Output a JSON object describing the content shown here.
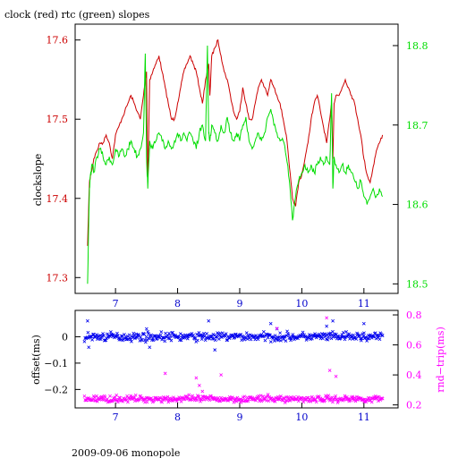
{
  "header": {
    "title": "clock (red) rtc (green) slopes"
  },
  "footer": {
    "caption": "2009-09-06 monopole"
  },
  "colors": {
    "clock": "#cc0000",
    "rtc": "#00dd00",
    "offset": "#0000ee",
    "rndtrip": "#ff00ff",
    "axis": "#000000"
  },
  "chart_data": [
    {
      "type": "line",
      "ylabel": "clockslope",
      "x_ticks": [
        7,
        8,
        9,
        10,
        11
      ],
      "xlim": [
        6.35,
        11.55
      ],
      "grid": false,
      "left_axis": {
        "lim": [
          17.28,
          17.62
        ],
        "ticks": [
          17.3,
          17.4,
          17.5,
          17.6
        ],
        "color": "#cc0000"
      },
      "right_axis": {
        "lim": [
          18.488,
          18.827
        ],
        "ticks": [
          18.5,
          18.6,
          18.7,
          18.8
        ],
        "color": "#00dd00"
      },
      "series": [
        {
          "axis": "left",
          "x": [
            6.55,
            6.58,
            6.6,
            6.63,
            6.65,
            6.7,
            6.75,
            6.8,
            6.85,
            6.9,
            6.95,
            7.0,
            7.05,
            7.1,
            7.15,
            7.2,
            7.25,
            7.3,
            7.35,
            7.4,
            7.45,
            7.48,
            7.5,
            7.52,
            7.55,
            7.6,
            7.65,
            7.7,
            7.75,
            7.8,
            7.85,
            7.9,
            7.95,
            8.0,
            8.05,
            8.1,
            8.15,
            8.2,
            8.25,
            8.3,
            8.35,
            8.4,
            8.45,
            8.48,
            8.5,
            8.52,
            8.55,
            8.6,
            8.65,
            8.7,
            8.75,
            8.8,
            8.85,
            8.9,
            8.95,
            9.0,
            9.05,
            9.1,
            9.15,
            9.2,
            9.25,
            9.3,
            9.35,
            9.4,
            9.45,
            9.5,
            9.55,
            9.6,
            9.65,
            9.7,
            9.75,
            9.8,
            9.85,
            9.9,
            9.95,
            10.0,
            10.05,
            10.1,
            10.15,
            10.2,
            10.25,
            10.3,
            10.35,
            10.4,
            10.45,
            10.48,
            10.5,
            10.52,
            10.55,
            10.6,
            10.65,
            10.7,
            10.75,
            10.8,
            10.85,
            10.9,
            10.95,
            11.0,
            11.05,
            11.1,
            11.15,
            11.2,
            11.25,
            11.3
          ],
          "y": [
            17.34,
            17.42,
            17.43,
            17.44,
            17.45,
            17.46,
            17.47,
            17.47,
            17.48,
            17.47,
            17.45,
            17.48,
            17.49,
            17.5,
            17.51,
            17.52,
            17.53,
            17.52,
            17.51,
            17.5,
            17.53,
            17.55,
            17.56,
            17.42,
            17.55,
            17.56,
            17.57,
            17.58,
            17.56,
            17.54,
            17.52,
            17.5,
            17.5,
            17.52,
            17.54,
            17.56,
            17.57,
            17.58,
            17.57,
            17.56,
            17.54,
            17.52,
            17.55,
            17.56,
            17.57,
            17.53,
            17.58,
            17.59,
            17.6,
            17.58,
            17.56,
            17.55,
            17.53,
            17.51,
            17.5,
            17.51,
            17.54,
            17.52,
            17.5,
            17.5,
            17.52,
            17.54,
            17.55,
            17.54,
            17.53,
            17.55,
            17.54,
            17.53,
            17.52,
            17.5,
            17.48,
            17.44,
            17.4,
            17.39,
            17.42,
            17.43,
            17.45,
            17.47,
            17.5,
            17.52,
            17.53,
            17.51,
            17.49,
            17.47,
            17.5,
            17.52,
            17.45,
            17.52,
            17.53,
            17.53,
            17.54,
            17.55,
            17.54,
            17.53,
            17.52,
            17.5,
            17.48,
            17.45,
            17.43,
            17.42,
            17.44,
            17.46,
            17.47,
            17.48
          ]
        },
        {
          "axis": "right",
          "x": [
            6.55,
            6.58,
            6.6,
            6.63,
            6.65,
            6.7,
            6.75,
            6.8,
            6.85,
            6.9,
            6.95,
            7.0,
            7.05,
            7.1,
            7.15,
            7.2,
            7.25,
            7.3,
            7.35,
            7.4,
            7.45,
            7.48,
            7.5,
            7.52,
            7.55,
            7.6,
            7.65,
            7.7,
            7.75,
            7.8,
            7.85,
            7.9,
            7.95,
            8.0,
            8.05,
            8.1,
            8.15,
            8.2,
            8.25,
            8.3,
            8.35,
            8.4,
            8.45,
            8.48,
            8.5,
            8.52,
            8.55,
            8.6,
            8.65,
            8.7,
            8.75,
            8.8,
            8.85,
            8.9,
            8.95,
            9.0,
            9.05,
            9.1,
            9.15,
            9.2,
            9.25,
            9.3,
            9.35,
            9.4,
            9.45,
            9.5,
            9.55,
            9.6,
            9.65,
            9.7,
            9.75,
            9.8,
            9.85,
            9.9,
            9.95,
            10.0,
            10.05,
            10.1,
            10.15,
            10.2,
            10.25,
            10.3,
            10.35,
            10.4,
            10.45,
            10.48,
            10.5,
            10.52,
            10.55,
            10.6,
            10.65,
            10.7,
            10.75,
            10.8,
            10.85,
            10.9,
            10.95,
            11.0,
            11.05,
            11.1,
            11.15,
            11.2,
            11.25,
            11.3
          ],
          "y": [
            18.5,
            18.62,
            18.64,
            18.65,
            18.64,
            18.66,
            18.67,
            18.66,
            18.65,
            18.66,
            18.65,
            18.67,
            18.66,
            18.67,
            18.66,
            18.67,
            18.68,
            18.67,
            18.66,
            18.67,
            18.69,
            18.79,
            18.66,
            18.62,
            18.68,
            18.67,
            18.68,
            18.69,
            18.68,
            18.67,
            18.68,
            18.67,
            18.68,
            18.69,
            18.68,
            18.69,
            18.68,
            18.69,
            18.68,
            18.67,
            18.69,
            18.7,
            18.68,
            18.8,
            18.69,
            18.68,
            18.7,
            18.69,
            18.68,
            18.7,
            18.69,
            18.71,
            18.69,
            18.68,
            18.69,
            18.68,
            18.7,
            18.71,
            18.68,
            18.67,
            18.68,
            18.69,
            18.68,
            18.69,
            18.71,
            18.72,
            18.7,
            18.69,
            18.68,
            18.68,
            18.66,
            18.63,
            18.58,
            18.61,
            18.63,
            18.64,
            18.65,
            18.64,
            18.65,
            18.64,
            18.65,
            18.66,
            18.65,
            18.66,
            18.65,
            18.74,
            18.62,
            18.66,
            18.65,
            18.64,
            18.65,
            18.64,
            18.65,
            18.64,
            18.63,
            18.62,
            18.63,
            18.61,
            18.6,
            18.61,
            18.62,
            18.61,
            18.62,
            18.61
          ]
        }
      ]
    },
    {
      "type": "scatter",
      "ylabel_left": "offset(ms)",
      "ylabel_right": "rnd−trip(ms)",
      "x_ticks": [
        7,
        8,
        9,
        10,
        11
      ],
      "xlim": [
        6.35,
        11.55
      ],
      "grid": false,
      "left_axis": {
        "lim": [
          -0.27,
          0.1
        ],
        "ticks": [
          0,
          -0.1,
          -0.2
        ],
        "tick_labels": [
          "0",
          "−0.1",
          "−0.2"
        ],
        "color": "#000000"
      },
      "right_axis": {
        "lim": [
          0.18,
          0.83
        ],
        "ticks": [
          0.2,
          0.4,
          0.6,
          0.8
        ],
        "tick_labels": [
          "0.2",
          "0.4",
          "0.6",
          "0.8"
        ],
        "color": "#ff00ff"
      },
      "series": [
        {
          "axis": "left",
          "marker": "x",
          "x_range": [
            6.5,
            11.3
          ],
          "center": 0.0,
          "spread": 0.015,
          "n": 420,
          "outliers": {
            "x": [
              6.55,
              6.57,
              7.5,
              7.55,
              8.5,
              8.6,
              9.5,
              9.6,
              10.4,
              10.5,
              11.0
            ],
            "y": [
              0.06,
              -0.04,
              0.03,
              -0.04,
              0.06,
              -0.05,
              0.05,
              0.03,
              0.04,
              0.06,
              0.05
            ]
          }
        },
        {
          "axis": "right",
          "marker": "x",
          "x_range": [
            6.5,
            11.3
          ],
          "center": 0.24,
          "spread": 0.02,
          "n": 420,
          "outliers": {
            "x": [
              7.8,
              8.3,
              8.35,
              8.4,
              8.7,
              9.6,
              10.4,
              10.45,
              10.55
            ],
            "y": [
              0.41,
              0.38,
              0.33,
              0.29,
              0.4,
              0.71,
              0.78,
              0.43,
              0.39
            ]
          }
        }
      ]
    }
  ]
}
